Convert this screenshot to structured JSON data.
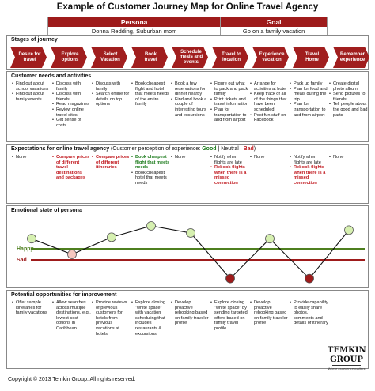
{
  "title": "Example of Customer Journey Map for Online Travel Agency",
  "persona_goal": {
    "persona_header": "Persona",
    "goal_header": "Goal",
    "persona": "Donna Redding, Suburban mom",
    "goal": "Go on a family vacation"
  },
  "sections": {
    "stages": "Stages of journey",
    "needs": "Customer needs and activities",
    "expectations_title": "Expectations for online travel agency",
    "expectations_legend_open": "(Customer perception of experience:",
    "expectations_good": "Good",
    "expectations_sep1": "|",
    "expectations_neutral": "Neutral",
    "expectations_sep2": "|",
    "expectations_bad": "Bad",
    "expectations_legend_close": ")",
    "emotional": "Emotional state of persona",
    "opportunities": "Potential opportunities for improvement"
  },
  "stages": [
    "Desire for travel",
    "Explore options",
    "Select Vacation",
    "Book travel",
    "Schedule meals and events",
    "Travel to location",
    "Experience vacation",
    "Travel Home",
    "Remember experience"
  ],
  "needs": [
    [
      "Find out about school vacations",
      "Find out about family events"
    ],
    [
      "Discuss with family",
      "Discuss with friends",
      "Read magazines",
      "Review online travel sites",
      "Get sense of costs"
    ],
    [
      "Discuss with family",
      "Search online for details on top options"
    ],
    [
      "Book cheapest flight and hotel that meets needs of the entire family"
    ],
    [
      "Book a few reservations for dinner nearby",
      "Find and book a couple of interesting tours and excursions"
    ],
    [
      "Figure out what to pack and pack family",
      "Print tickets and travel information",
      "Plan for transportation to and from airport"
    ],
    [
      "Arrange for activities at hotel",
      "Keep track of all of the things that have been scheduled",
      "Post fun stuff on Facebook"
    ],
    [
      "Pack up family",
      "Plan for food and meals during the trip",
      "Plan for transportation to and from airport"
    ],
    [
      "Create digital photo album",
      "Send pictures to friends",
      "Tell people about the good and bad parts"
    ]
  ],
  "expectations": [
    [
      {
        "t": "None",
        "c": "n"
      }
    ],
    [
      {
        "t": "Compare prices of different travel destinations and packages",
        "c": "b"
      }
    ],
    [
      {
        "t": "Compare prices of different itineraries",
        "c": "b"
      }
    ],
    [
      {
        "t": "Book cheapest flight that meets needs",
        "c": "g"
      },
      {
        "t": "Book cheapest hotel that meets needs",
        "c": "n"
      }
    ],
    [
      {
        "t": "None",
        "c": "n"
      }
    ],
    [
      {
        "t": "Notify when flights are late",
        "c": "n"
      },
      {
        "t": "Rebook flights when there is a missed connection",
        "c": "b"
      }
    ],
    [
      {
        "t": "None",
        "c": "n"
      }
    ],
    [
      {
        "t": "Notify when flights are late",
        "c": "n"
      },
      {
        "t": "Rebook flights when there is a missed connection",
        "c": "b"
      }
    ],
    [
      {
        "t": "None",
        "c": "n"
      }
    ]
  ],
  "emotion_labels": {
    "happy": "Happy",
    "sad": "Sad"
  },
  "emotion_levels": [
    0.55,
    0.0,
    0.6,
    1.0,
    0.75,
    -0.85,
    0.55,
    -0.85,
    0.85
  ],
  "opportunities": [
    [
      "Offer sample itineraries for family vacations"
    ],
    [
      "Allow searches across multiple destinations, e.g., lowest cost options in Caribbean"
    ],
    [
      "Provide reviews of previous customers for hotels from previous vacations at hotels"
    ],
    [
      "Explore closing \"white space\" with vacation scheduling that includes restaurants & excursions"
    ],
    [
      "Develop proactive rebooking based on family traveler profile"
    ],
    [
      "Explore closing \"white space\" by sending targeted offers based on family travel profile"
    ],
    [
      "Develop proactive rebooking based on family traveler profile"
    ],
    [
      "Provide capability to easily share photos, comments and details of itinerary"
    ]
  ],
  "copyright": "Copyright © 2013 Temkin Group. All rights reserved.",
  "logo": {
    "line1": "TEMKIN",
    "line2": "GROUP",
    "tagline": "Where experience matters"
  },
  "colors": {
    "accent": "#a01e1e",
    "good": "#1a7a1a",
    "bad": "#c0171d",
    "happy_line": "#4e7f1f",
    "sad_line": "#9e1b1b",
    "dot_red": "#9e1b1b",
    "dot_green": "#d6f0b0",
    "dot_pink": "#f6c8c0"
  }
}
